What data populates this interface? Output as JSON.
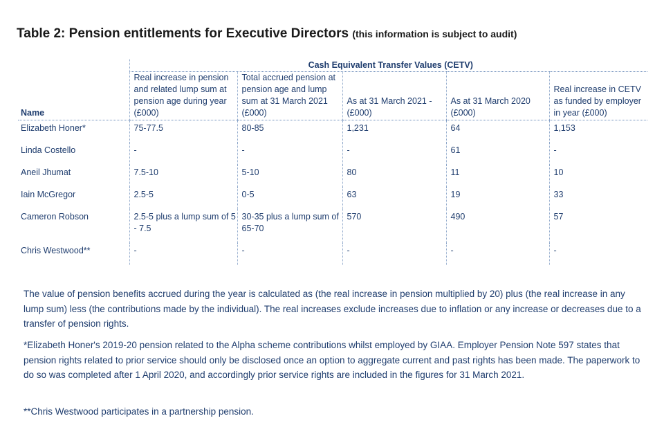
{
  "title": {
    "main": "Table 2: Pension entitlements for Executive Directors",
    "sub": "(this information is subject to audit)"
  },
  "table": {
    "group_header": "Cash Equivalent Transfer Values (CETV)",
    "columns": [
      "Name",
      "Real increase in pension and related lump sum at pension age during year (£000)",
      "Total accrued pension at pension age and lump sum at 31 March 2021 (£000)",
      "As at 31 March 2021 - (£000)",
      "As at 31 March 2020 (£000)",
      "Real increase in CETV as funded by employer in year (£000)"
    ],
    "rows": [
      [
        "Elizabeth Honer*",
        "75-77.5",
        "80-85",
        "1,231",
        "64",
        "1,153"
      ],
      [
        "Linda Costello",
        "-",
        "-",
        "-",
        "61",
        "-"
      ],
      [
        "Aneil Jhumat",
        "7.5-10",
        "5-10",
        "80",
        "11",
        "10"
      ],
      [
        "Iain McGregor",
        "2.5-5",
        "0-5",
        "63",
        "19",
        "33"
      ],
      [
        "Cameron Robson",
        "2.5-5 plus a lump sum of 5 - 7.5",
        "30-35 plus a lump sum of 65-70",
        "570",
        "490",
        "57"
      ],
      [
        "Chris Westwood**",
        "-",
        "-",
        "-",
        "-",
        "-"
      ]
    ]
  },
  "notes": {
    "note1": "The value of pension benefits accrued during the year is calculated as (the real increase in pension multiplied by 20) plus (the real increase in any lump sum) less (the contributions made by the individual).  The real increases exclude increases due to inflation or any increase or decreases due to a transfer of pension rights.",
    "note2": "*Elizabeth Honer's 2019-20 pension related to the Alpha scheme contributions whilst employed by GIAA. Employer Pension Note 597 states that pension rights related to prior service should only be disclosed once an option to aggregate current and past rights has been made. The paperwork to do so was completed after 1 April 2020, and accordingly prior service rights are included in the figures for 31 March 2021.",
    "note3": "**Chris Westwood participates in a partnership pension."
  },
  "colors": {
    "text": "#1f3d6e",
    "title": "#1a1a1a",
    "rule": "#6a8ab8"
  }
}
